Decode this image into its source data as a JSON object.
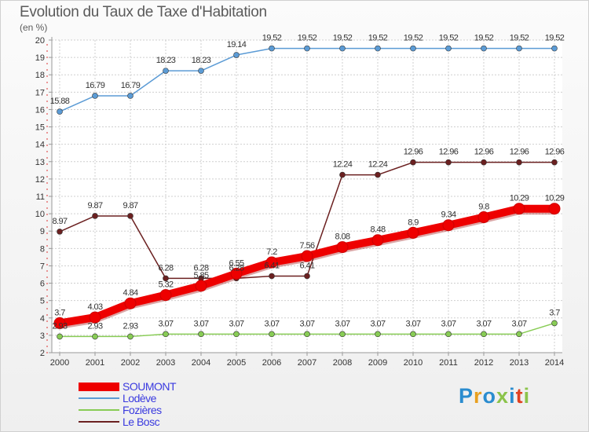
{
  "title": "Evolution du Taux de Taxe d'Habitation",
  "subtitle": "(en %)",
  "logo": {
    "text": "Proxiti",
    "colors": [
      "#2a8ccf",
      "#e8a020",
      "#2a8ccf",
      "#8bc34a",
      "#2a8ccf",
      "#e04020",
      "#8bc34a"
    ]
  },
  "chart_data": {
    "type": "line",
    "x": [
      "2000",
      "2001",
      "2002",
      "2003",
      "2004",
      "2005",
      "2006",
      "2007",
      "2008",
      "2009",
      "2010",
      "2011",
      "2012",
      "2013",
      "2014"
    ],
    "ylim": [
      2,
      20
    ],
    "yticks": [
      2,
      3,
      4,
      5,
      6,
      7,
      8,
      9,
      10,
      11,
      12,
      13,
      14,
      15,
      16,
      17,
      18,
      19,
      20
    ],
    "grid": true,
    "legend_position": "bottom-left",
    "series": [
      {
        "name": "SOUMONT",
        "color": "#ee0000",
        "values": [
          3.7,
          4.03,
          4.84,
          5.32,
          5.85,
          6.55,
          7.2,
          7.56,
          8.08,
          8.48,
          8.9,
          9.34,
          9.8,
          10.29,
          10.29
        ],
        "labels": [
          "3.7",
          "4.03",
          "4.84",
          "5.32",
          "5.85",
          "6.55",
          "7.2",
          "7.56",
          "8.08",
          "8.48",
          "8.9",
          "9.34",
          "9.8",
          "10.29",
          "10.29"
        ]
      },
      {
        "name": "Lodève",
        "color": "#5b9bd5",
        "values": [
          15.88,
          16.79,
          16.79,
          18.23,
          18.23,
          19.14,
          19.52,
          19.52,
          19.52,
          19.52,
          19.52,
          19.52,
          19.52,
          19.52,
          19.52
        ],
        "labels": [
          "15.88",
          "16.79",
          "16.79",
          "18.23",
          "18.23",
          "19.14",
          "19.52",
          "19.52",
          "19.52",
          "19.52",
          "19.52",
          "19.52",
          "19.52",
          "19.52",
          "19.52"
        ]
      },
      {
        "name": "Fozières",
        "color": "#88cc55",
        "values": [
          2.93,
          2.93,
          2.93,
          3.07,
          3.07,
          3.07,
          3.07,
          3.07,
          3.07,
          3.07,
          3.07,
          3.07,
          3.07,
          3.07,
          3.7
        ],
        "labels": [
          "2.93",
          "2.93",
          "2.93",
          "3.07",
          "3.07",
          "3.07",
          "3.07",
          "3.07",
          "3.07",
          "3.07",
          "3.07",
          "3.07",
          "3.07",
          "3.07",
          "3.7"
        ]
      },
      {
        "name": "Le Bosc",
        "color": "#6b2020",
        "values": [
          8.97,
          9.87,
          9.87,
          6.28,
          6.28,
          6.28,
          6.41,
          6.41,
          12.24,
          12.24,
          12.96,
          12.96,
          12.96,
          12.96,
          12.96
        ],
        "labels": [
          "8.97",
          "9.87",
          "9.87",
          "6.28",
          "6.28",
          "6.28",
          "6.41",
          "6.41",
          "12.24",
          "12.24",
          "12.96",
          "12.96",
          "12.96",
          "12.96",
          "12.96"
        ]
      }
    ]
  }
}
